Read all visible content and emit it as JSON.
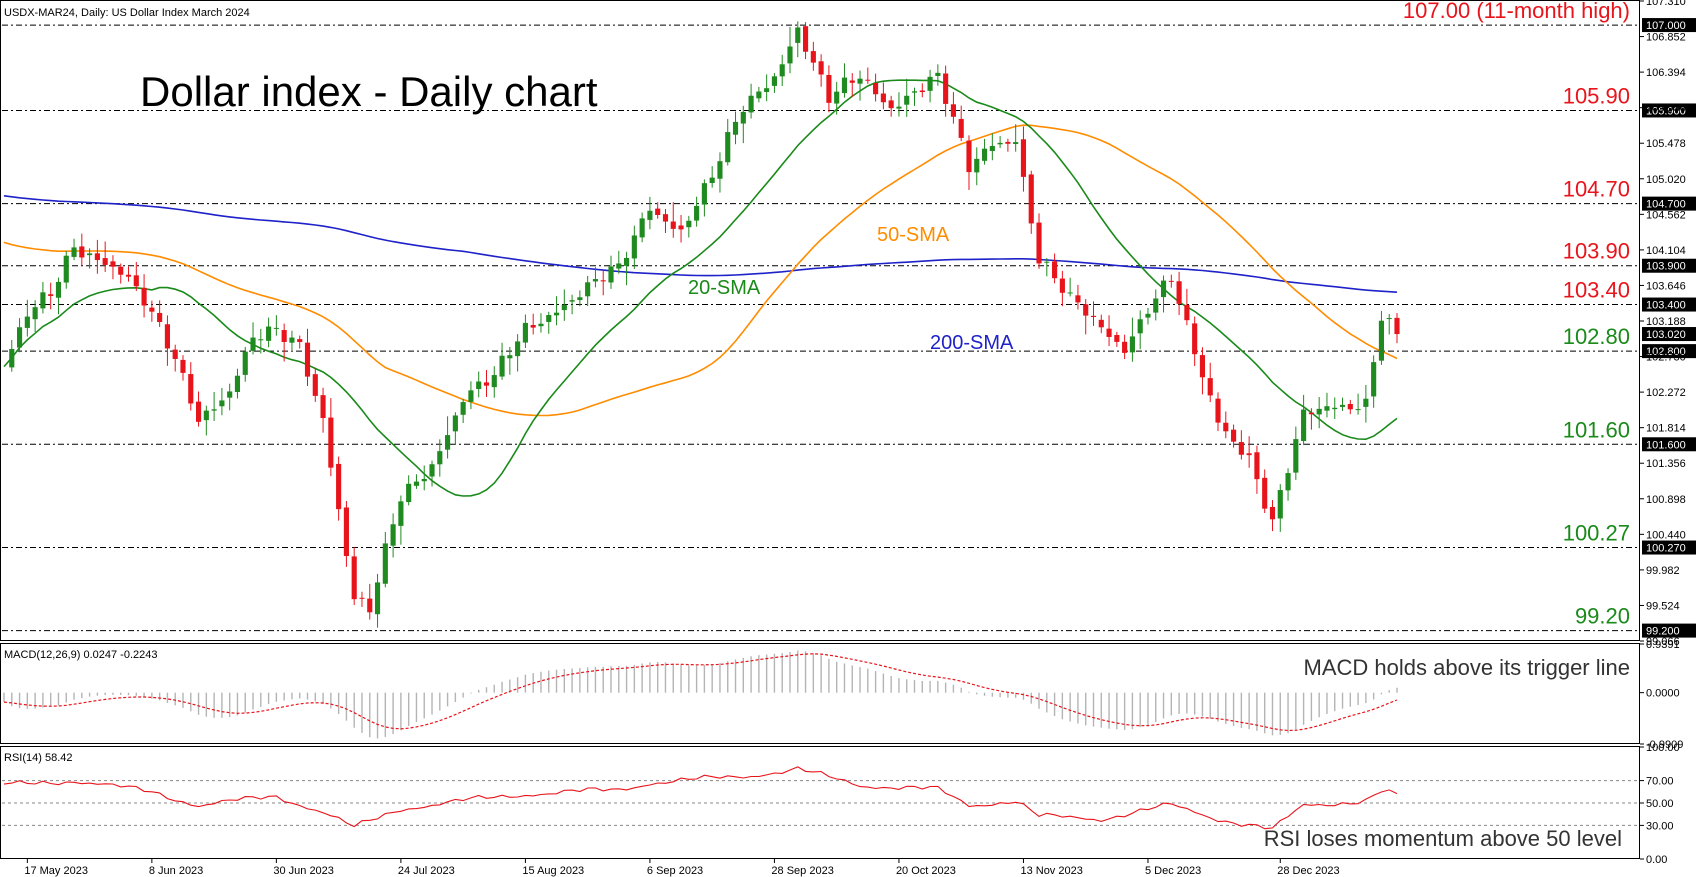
{
  "header": {
    "symbol_line": "USDX-MAR24, Daily:  US Dollar Index March 2024",
    "main_title": "Dollar index - Daily chart"
  },
  "colors": {
    "bull": "#1f8a1f",
    "bear": "#e8141b",
    "sma20": "#1a8a1a",
    "sma50": "#ff8c00",
    "sma200": "#1e22c8",
    "resistance": "#e8141b",
    "support": "#1a8a1a",
    "macd_hist": "#b4b4b4",
    "macd_signal": "#e8141b",
    "rsi": "#e8141b"
  },
  "chart_data": [
    {
      "type": "candlestick",
      "panel": "price",
      "ylim": [
        99.066,
        107.31
      ],
      "y_ticks": [
        "107.310",
        "106.852",
        "106.394",
        "105.936",
        "105.478",
        "105.020",
        "104.562",
        "104.104",
        "103.646",
        "103.188",
        "102.730",
        "102.272",
        "101.814",
        "101.356",
        "100.898",
        "100.440",
        "99.982",
        "99.524",
        "99.066"
      ],
      "x_ticks": [
        "17 May 2023",
        "8 Jun 2023",
        "30 Jun 2023",
        "24 Jul 2023",
        "15 Aug 2023",
        "6 Sep 2023",
        "28 Sep 2023",
        "20 Oct 2023",
        "13 Nov 2023",
        "5 Dec 2023",
        "28 Dec 2023"
      ],
      "levels": [
        {
          "value": 107.0,
          "label": "107.00 (11-month high)",
          "tag": "107.000",
          "kind": "resistance"
        },
        {
          "value": 105.9,
          "label": "105.90",
          "tag": "105.900",
          "kind": "resistance"
        },
        {
          "value": 104.7,
          "label": "104.70",
          "tag": "104.700",
          "kind": "resistance"
        },
        {
          "value": 103.9,
          "label": "103.90",
          "tag": "103.900",
          "kind": "resistance"
        },
        {
          "value": 103.4,
          "label": "103.40",
          "tag": "103.400",
          "kind": "resistance"
        },
        {
          "value": 102.8,
          "label": "102.80",
          "tag": "102.800",
          "kind": "support"
        },
        {
          "value": 101.6,
          "label": "101.60",
          "tag": "101.600",
          "kind": "support"
        },
        {
          "value": 100.27,
          "label": "100.27",
          "tag": "100.270",
          "kind": "support"
        },
        {
          "value": 99.2,
          "label": "99.20",
          "tag": "99.200",
          "kind": "support"
        }
      ],
      "current_price": {
        "value": 103.02,
        "tag": "103.020"
      },
      "sma_labels": {
        "sma20": "20-SMA",
        "sma50": "50-SMA",
        "sma200": "200-SMA"
      },
      "anchors": [
        {
          "date": "12 May 2023",
          "close": 102.6
        },
        {
          "date": "17 May 2023",
          "close": 103.2
        },
        {
          "date": "22 May 2023",
          "close": 103.5
        },
        {
          "date": "25 May 2023",
          "close": 104.2
        },
        {
          "date": "31 May 2023",
          "close": 104.0
        },
        {
          "date": "5 Jun 2023",
          "close": 103.7
        },
        {
          "date": "8 Jun 2023",
          "close": 103.2
        },
        {
          "date": "13 Jun 2023",
          "close": 102.7
        },
        {
          "date": "16 Jun 2023",
          "close": 102.0
        },
        {
          "date": "22 Jun 2023",
          "close": 102.3
        },
        {
          "date": "27 Jun 2023",
          "close": 102.9
        },
        {
          "date": "30 Jun 2023",
          "close": 103.0
        },
        {
          "date": "5 Jul 2023",
          "close": 102.9
        },
        {
          "date": "10 Jul 2023",
          "close": 102.0
        },
        {
          "date": "14 Jul 2023",
          "close": 99.6
        },
        {
          "date": "18 Jul 2023",
          "close": 99.4
        },
        {
          "date": "24 Jul 2023",
          "close": 100.9
        },
        {
          "date": "28 Jul 2023",
          "close": 101.4
        },
        {
          "date": "3 Aug 2023",
          "close": 102.2
        },
        {
          "date": "9 Aug 2023",
          "close": 102.4
        },
        {
          "date": "15 Aug 2023",
          "close": 103.1
        },
        {
          "date": "21 Aug 2023",
          "close": 103.4
        },
        {
          "date": "25 Aug 2023",
          "close": 103.6
        },
        {
          "date": "31 Aug 2023",
          "close": 103.8
        },
        {
          "date": "6 Sep 2023",
          "close": 104.7
        },
        {
          "date": "12 Sep 2023",
          "close": 104.4
        },
        {
          "date": "18 Sep 2023",
          "close": 105.0
        },
        {
          "date": "22 Sep 2023",
          "close": 105.9
        },
        {
          "date": "28 Sep 2023",
          "close": 106.4
        },
        {
          "date": "3 Oct 2023",
          "close": 107.0
        },
        {
          "date": "9 Oct 2023",
          "close": 106.0
        },
        {
          "date": "13 Oct 2023",
          "close": 106.3
        },
        {
          "date": "19 Oct 2023",
          "close": 106.0
        },
        {
          "date": "24 Oct 2023",
          "close": 106.2
        },
        {
          "date": "27 Oct 2023",
          "close": 106.3
        },
        {
          "date": "2 Nov 2023",
          "close": 105.1
        },
        {
          "date": "7 Nov 2023",
          "close": 105.5
        },
        {
          "date": "10 Nov 2023",
          "close": 105.6
        },
        {
          "date": "15 Nov 2023",
          "close": 104.0
        },
        {
          "date": "21 Nov 2023",
          "close": 103.4
        },
        {
          "date": "27 Nov 2023",
          "close": 103.1
        },
        {
          "date": "30 Nov 2023",
          "close": 102.9
        },
        {
          "date": "5 Dec 2023",
          "close": 103.4
        },
        {
          "date": "8 Dec 2023",
          "close": 103.7
        },
        {
          "date": "13 Dec 2023",
          "close": 102.7
        },
        {
          "date": "18 Dec 2023",
          "close": 101.9
        },
        {
          "date": "22 Dec 2023",
          "close": 101.5
        },
        {
          "date": "27 Dec 2023",
          "close": 100.6
        },
        {
          "date": "2 Jan 2024",
          "close": 101.9
        },
        {
          "date": "8 Jan 2024",
          "close": 102.1
        },
        {
          "date": "12 Jan 2024",
          "close": 102.2
        },
        {
          "date": "16 Jan 2024",
          "close": 103.3
        },
        {
          "date": "18 Jan 2024",
          "close": 103.0
        }
      ]
    },
    {
      "type": "histogram+line",
      "panel": "macd",
      "label": "MACD(12,26,9) 0.0247 -0.2243",
      "annotation": "MACD holds above its trigger line",
      "ylim": [
        -0.9909,
        0.9391
      ],
      "y_ticks": [
        "0.9391",
        "0.0000",
        "-0.9909"
      ]
    },
    {
      "type": "line",
      "panel": "rsi",
      "label": "RSI(14) 58.42",
      "annotation": "RSI loses momentum above 50 level",
      "ylim": [
        0,
        100
      ],
      "y_ticks": [
        "100.00",
        "70.00",
        "50.00",
        "30.00",
        "0.00"
      ],
      "anchors": [
        {
          "date": "12 May 2023",
          "value": 66
        },
        {
          "date": "25 May 2023",
          "value": 70
        },
        {
          "date": "8 Jun 2023",
          "value": 60
        },
        {
          "date": "16 Jun 2023",
          "value": 48
        },
        {
          "date": "30 Jun 2023",
          "value": 56
        },
        {
          "date": "10 Jul 2023",
          "value": 42
        },
        {
          "date": "14 Jul 2023",
          "value": 28
        },
        {
          "date": "24 Jul 2023",
          "value": 45
        },
        {
          "date": "3 Aug 2023",
          "value": 52
        },
        {
          "date": "15 Aug 2023",
          "value": 58
        },
        {
          "date": "31 Aug 2023",
          "value": 62
        },
        {
          "date": "6 Sep 2023",
          "value": 68
        },
        {
          "date": "22 Sep 2023",
          "value": 74
        },
        {
          "date": "3 Oct 2023",
          "value": 80
        },
        {
          "date": "13 Oct 2023",
          "value": 66
        },
        {
          "date": "27 Oct 2023",
          "value": 62
        },
        {
          "date": "2 Nov 2023",
          "value": 48
        },
        {
          "date": "10 Nov 2023",
          "value": 52
        },
        {
          "date": "15 Nov 2023",
          "value": 38
        },
        {
          "date": "27 Nov 2023",
          "value": 36
        },
        {
          "date": "8 Dec 2023",
          "value": 48
        },
        {
          "date": "18 Dec 2023",
          "value": 36
        },
        {
          "date": "27 Dec 2023",
          "value": 26
        },
        {
          "date": "2 Jan 2024",
          "value": 48
        },
        {
          "date": "12 Jan 2024",
          "value": 52
        },
        {
          "date": "16 Jan 2024",
          "value": 60
        },
        {
          "date": "18 Jan 2024",
          "value": 58.42
        }
      ]
    }
  ]
}
